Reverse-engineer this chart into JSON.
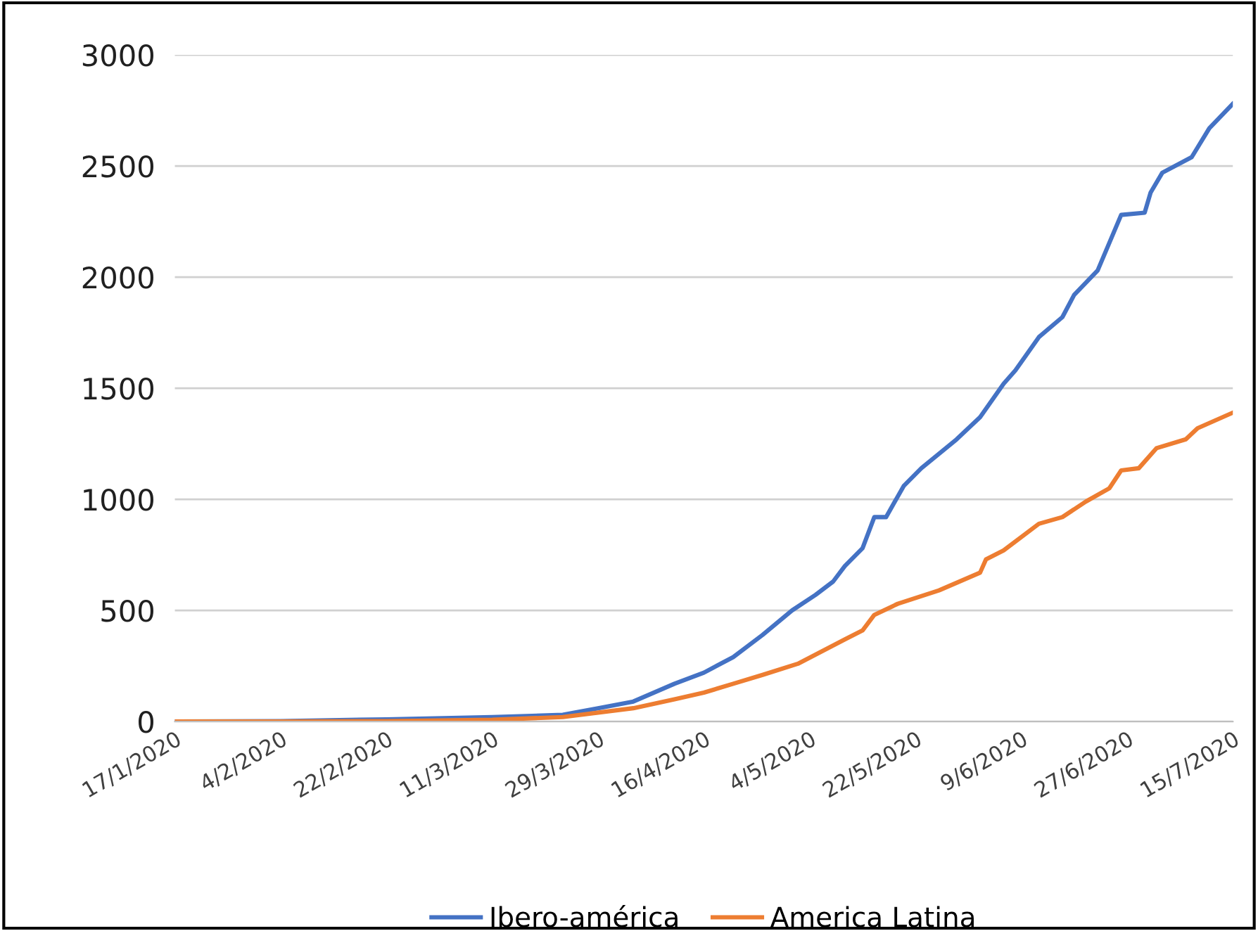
{
  "chart_data": {
    "type": "line",
    "xlim": [
      "2020-01-17",
      "2020-07-15"
    ],
    "ylim": [
      0,
      3000
    ],
    "yticks": [
      0,
      500,
      1000,
      1500,
      2000,
      2500,
      3000
    ],
    "xticks": [
      {
        "value": "2020-01-17",
        "label": "17/1/2020"
      },
      {
        "value": "2020-02-04",
        "label": "4/2/2020"
      },
      {
        "value": "2020-02-22",
        "label": "22/2/2020"
      },
      {
        "value": "2020-03-11",
        "label": "11/3/2020"
      },
      {
        "value": "2020-03-29",
        "label": "29/3/2020"
      },
      {
        "value": "2020-04-16",
        "label": "16/4/2020"
      },
      {
        "value": "2020-05-04",
        "label": "4/5/2020"
      },
      {
        "value": "2020-05-22",
        "label": "22/5/2020"
      },
      {
        "value": "2020-06-09",
        "label": "9/6/2020"
      },
      {
        "value": "2020-06-27",
        "label": "27/6/2020"
      },
      {
        "value": "2020-07-15",
        "label": "15/7/2020"
      }
    ],
    "grid": "y",
    "legend": "bottom",
    "marker": "none",
    "line_style": "solid",
    "series": [
      {
        "name": "Ibero-américa",
        "color": "#4472c4",
        "x": [
          "2020-01-17",
          "2020-02-04",
          "2020-02-22",
          "2020-03-11",
          "2020-03-23",
          "2020-03-29",
          "2020-04-04",
          "2020-04-11",
          "2020-04-16",
          "2020-04-21",
          "2020-04-26",
          "2020-05-01",
          "2020-05-05",
          "2020-05-08",
          "2020-05-10",
          "2020-05-13",
          "2020-05-15",
          "2020-05-17",
          "2020-05-20",
          "2020-05-23",
          "2020-05-29",
          "2020-06-02",
          "2020-06-06",
          "2020-06-08",
          "2020-06-12",
          "2020-06-16",
          "2020-06-18",
          "2020-06-22",
          "2020-06-26",
          "2020-06-30",
          "2020-07-01",
          "2020-07-03",
          "2020-07-08",
          "2020-07-11",
          "2020-07-15"
        ],
        "values": [
          0,
          2,
          10,
          20,
          30,
          60,
          90,
          170,
          220,
          290,
          390,
          500,
          570,
          630,
          700,
          780,
          920,
          920,
          1060,
          1140,
          1270,
          1370,
          1520,
          1580,
          1730,
          1820,
          1920,
          2030,
          2280,
          2290,
          2380,
          2470,
          2540,
          2670,
          2780
        ]
      },
      {
        "name": "America Latina",
        "color": "#ed7d31",
        "x": [
          "2020-01-17",
          "2020-02-04",
          "2020-02-22",
          "2020-03-11",
          "2020-03-23",
          "2020-04-04",
          "2020-04-11",
          "2020-04-16",
          "2020-04-21",
          "2020-04-26",
          "2020-05-02",
          "2020-05-10",
          "2020-05-13",
          "2020-05-15",
          "2020-05-19",
          "2020-05-26",
          "2020-06-02",
          "2020-06-03",
          "2020-06-06",
          "2020-06-12",
          "2020-06-16",
          "2020-06-20",
          "2020-06-24",
          "2020-06-26",
          "2020-06-29",
          "2020-07-02",
          "2020-07-07",
          "2020-07-09",
          "2020-07-15"
        ],
        "values": [
          0,
          0,
          2,
          8,
          20,
          60,
          100,
          130,
          170,
          210,
          260,
          370,
          410,
          480,
          530,
          590,
          670,
          730,
          770,
          890,
          920,
          990,
          1050,
          1130,
          1140,
          1230,
          1270,
          1320,
          1390
        ]
      }
    ]
  }
}
